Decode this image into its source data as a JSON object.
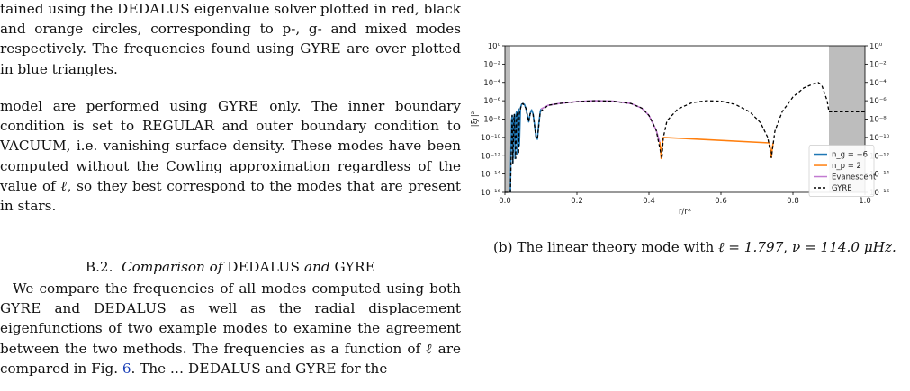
{
  "left_column": {
    "fig_caption_tail": [
      "tained using the ",
      "DEDALUS",
      " eigenvalue solver plotted in red, black and orange circles, corresponding to p-, g- and mixed modes respectively. The frequencies found using ",
      "GYRE",
      " are over plotted in blue triangles."
    ],
    "para1": [
      "model are performed using ",
      "GYRE",
      " only. The inner boundary condition is set to REGULAR and outer boundary condition to VACUUM, i.e. vanishing surface density. These modes have been computed without the Cowling approximation regardless of the value of ",
      "ℓ",
      ", so they best correspond to the modes that are present in stars."
    ],
    "section": {
      "number": "B.2.",
      "title_a": "Comparison of ",
      "title_b": "DEDALUS",
      "title_c": " and ",
      "title_d": "GYRE"
    },
    "para2": [
      "We compare the frequencies of all modes computed using both ",
      "GYRE",
      " and ",
      "DEDALUS",
      " as well as the radial displacement eigenfunctions of two example modes to examine the agreement between the two methods. The frequencies as a function of ",
      "ℓ",
      " are compared in Fig. ",
      "6",
      "."
    ],
    "para2_cut": "The … ",
    "para2_cut_sc1": "DEDALUS",
    "para2_cut_mid": " and ",
    "para2_cut_sc2": "GYRE",
    "para2_cut_tail": " for the"
  },
  "caption": {
    "label": "(b) The linear theory mode with ",
    "ell": "ℓ = 1.797",
    "sep": ", ",
    "nu": "ν = 114.0 μHz."
  },
  "chart_data": {
    "type": "line",
    "title": "",
    "xlabel": "r/r*",
    "ylabel": "|ξr|²",
    "xlim": [
      0.0,
      1.0
    ],
    "ylim_log10": [
      -16,
      0
    ],
    "yscale": "log",
    "x_ticks": [
      "0.0",
      "0.2",
      "0.4",
      "0.6",
      "0.8",
      "1.0"
    ],
    "y_ticks": [
      "10⁰",
      "10⁻²",
      "10⁻⁴",
      "10⁻⁶",
      "10⁻⁸",
      "10⁻¹⁰",
      "10⁻¹²",
      "10⁻¹⁴",
      "10⁻¹⁶"
    ],
    "shaded_regions": [
      [
        0.0,
        0.015
      ],
      [
        0.9,
        1.0
      ]
    ],
    "legend": {
      "placement": "lower-right",
      "entries": [
        "n_g = −6",
        "n_p = 2",
        "Evanescent",
        "GYRE"
      ]
    },
    "colors": {
      "ng": "#1f77b4",
      "np": "#ff7f0e",
      "evanescent": "#c27bd1",
      "gyre": "#000000",
      "shade": "#bdbdbd"
    },
    "series": [
      {
        "name": "n_g = −6",
        "x": [
          0.015,
          0.018,
          0.02,
          0.022,
          0.024,
          0.026,
          0.028,
          0.03,
          0.032,
          0.034,
          0.036,
          0.038,
          0.04,
          0.043,
          0.046,
          0.05,
          0.054,
          0.058,
          0.062,
          0.066,
          0.07,
          0.074,
          0.078,
          0.082,
          0.086,
          0.09,
          0.094,
          0.098,
          0.1
        ],
        "y_log10": [
          -16,
          -8.2,
          -7.6,
          -12.8,
          -8.0,
          -7.5,
          -12.3,
          -7.7,
          -7.2,
          -11.8,
          -7.4,
          -6.9,
          -10.9,
          -6.8,
          -6.4,
          -6.3,
          -6.4,
          -6.8,
          -7.5,
          -8.3,
          -7.4,
          -7.0,
          -7.4,
          -8.5,
          -9.9,
          -10.2,
          -8.5,
          -7.2,
          -6.9
        ]
      },
      {
        "name": "n_p = 2",
        "x": [
          0.43,
          0.432,
          0.434,
          0.436,
          0.438,
          0.44,
          0.735,
          0.738,
          0.74,
          0.742,
          0.745
        ],
        "y_log10": [
          -10.5,
          -11.2,
          -12.3,
          -11.2,
          -10.5,
          -10.0,
          -10.6,
          -11.4,
          -12.2,
          -11.4,
          -10.6
        ]
      },
      {
        "name": "Evanescent",
        "x": [
          0.1,
          0.12,
          0.15,
          0.2,
          0.25,
          0.3,
          0.35,
          0.38,
          0.4,
          0.42,
          0.43
        ],
        "y_log10": [
          -6.9,
          -6.5,
          -6.3,
          -6.1,
          -6.0,
          -6.05,
          -6.3,
          -6.8,
          -7.6,
          -9.2,
          -10.5
        ]
      },
      {
        "name": "GYRE",
        "x": [
          0.0,
          0.005,
          0.01,
          0.015,
          0.02,
          0.022,
          0.025,
          0.026,
          0.03,
          0.032,
          0.035,
          0.038,
          0.04,
          0.046,
          0.05,
          0.058,
          0.066,
          0.07,
          0.078,
          0.086,
          0.09,
          0.098,
          0.12,
          0.15,
          0.2,
          0.25,
          0.3,
          0.35,
          0.38,
          0.4,
          0.42,
          0.436,
          0.44,
          0.45,
          0.48,
          0.52,
          0.56,
          0.6,
          0.64,
          0.68,
          0.71,
          0.73,
          0.74,
          0.75,
          0.77,
          0.8,
          0.83,
          0.86,
          0.87,
          0.88,
          0.895,
          0.9,
          1.0
        ],
        "y_log10": [
          -16,
          -16,
          -16,
          -16,
          -7.6,
          -12.8,
          -8.0,
          -7.5,
          -12.3,
          -7.7,
          -7.2,
          -11.8,
          -7.4,
          -6.4,
          -6.3,
          -6.8,
          -8.3,
          -7.4,
          -7.4,
          -9.9,
          -10.2,
          -7.2,
          -6.5,
          -6.3,
          -6.1,
          -6.0,
          -6.05,
          -6.3,
          -6.8,
          -7.6,
          -9.2,
          -12.3,
          -10.0,
          -8.2,
          -6.9,
          -6.2,
          -6.0,
          -6.05,
          -6.4,
          -7.2,
          -8.4,
          -10.0,
          -12.2,
          -9.3,
          -7.2,
          -5.6,
          -4.6,
          -4.1,
          -4.0,
          -4.3,
          -6.0,
          -7.2,
          -7.2
        ]
      }
    ]
  }
}
